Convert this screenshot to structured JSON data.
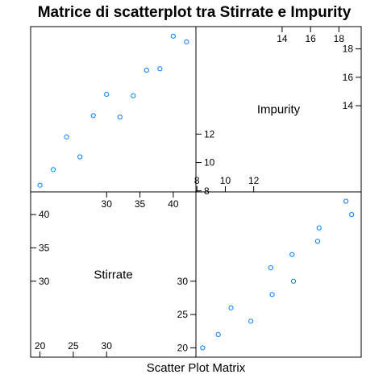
{
  "chart_data": {
    "type": "scatter",
    "title": "Matrice di scatterplot tra Stirrate e Impurity",
    "xlabel": "Scatter Plot Matrix",
    "variables": [
      {
        "name": "Stirrate",
        "values": [
          20,
          22,
          24,
          26,
          28,
          30,
          32,
          34,
          36,
          38,
          40,
          42
        ],
        "lim": [
          18.6,
          43.4
        ],
        "ticks_left": [
          "30",
          "35",
          "40"
        ],
        "ticks_top": [
          "30",
          "35",
          "40"
        ],
        "ticks_bottom": [
          "20",
          "25",
          "30"
        ],
        "ticks_right": [
          "20",
          "25",
          "30"
        ]
      },
      {
        "name": "Impurity",
        "values": [
          8.4,
          9.5,
          11.8,
          10.4,
          13.3,
          14.8,
          13.2,
          14.7,
          16.5,
          16.6,
          18.9,
          18.5
        ],
        "lim": [
          7.93,
          19.57
        ],
        "ticks_left": [
          "8",
          "10",
          "12"
        ],
        "ticks_top": [
          "14",
          "16",
          "18"
        ],
        "ticks_bottom": [
          "8",
          "10",
          "12"
        ],
        "ticks_right": [
          "14",
          "16",
          "18"
        ]
      }
    ],
    "grid": false,
    "point_color": "#0080ff"
  }
}
